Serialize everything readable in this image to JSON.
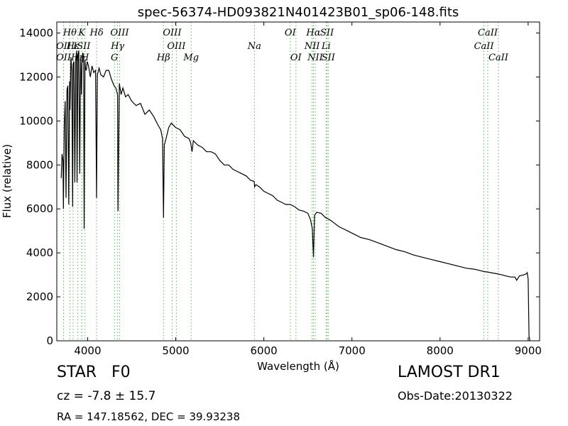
{
  "chart_data": {
    "type": "line",
    "title": "spec-56374-HD093821N401423B01_sp06-148.fits",
    "xlabel": "Wavelength (Å)",
    "ylabel": "Flux (relative)",
    "xlim": [
      3650,
      9130
    ],
    "ylim": [
      0,
      14500
    ],
    "xticks": [
      4000,
      5000,
      6000,
      7000,
      8000,
      9000
    ],
    "yticks": [
      0,
      2000,
      4000,
      6000,
      8000,
      10000,
      12000,
      14000
    ],
    "grid": false,
    "line_color": "#000000",
    "marker_color": "#55bb55",
    "series": [
      {
        "x": [
          3700,
          3710,
          3720,
          3725,
          3735,
          3745,
          3755,
          3765,
          3775,
          3785,
          3795,
          3800,
          3810,
          3820,
          3830,
          3835,
          3845,
          3855,
          3865,
          3875,
          3880,
          3890,
          3900,
          3910,
          3920,
          3930,
          3935,
          3945,
          3955,
          3960,
          3970,
          3975,
          3985,
          3995,
          4010,
          4030,
          4050,
          4070,
          4090,
          4101,
          4110,
          4130,
          4150,
          4180,
          4210,
          4240,
          4270,
          4300,
          4320,
          4340,
          4345,
          4360,
          4380,
          4400,
          4430,
          4460,
          4500,
          4550,
          4600,
          4650,
          4700,
          4750,
          4800,
          4830,
          4850,
          4861,
          4870,
          4890,
          4920,
          4950,
          5000,
          5050,
          5100,
          5150,
          5170,
          5185,
          5200,
          5250,
          5300,
          5350,
          5400,
          5450,
          5500,
          5550,
          5600,
          5650,
          5700,
          5750,
          5800,
          5850,
          5890,
          5895,
          5910,
          5950,
          6000,
          6050,
          6100,
          6150,
          6200,
          6250,
          6300,
          6350,
          6400,
          6450,
          6500,
          6530,
          6550,
          6563,
          6575,
          6600,
          6650,
          6700,
          6750,
          6800,
          6850,
          6900,
          6950,
          7000,
          7100,
          7200,
          7300,
          7400,
          7500,
          7600,
          7700,
          7800,
          7850,
          7900,
          8000,
          8100,
          8200,
          8300,
          8400,
          8450,
          8500,
          8550,
          8600,
          8650,
          8700,
          8750,
          8800,
          8850,
          8870,
          8900,
          8950,
          8980,
          8990,
          9000,
          9010,
          9020
        ],
        "y": [
          7400,
          8500,
          8200,
          6000,
          9800,
          10900,
          6500,
          11400,
          11600,
          6200,
          11800,
          10500,
          12900,
          12300,
          6100,
          12600,
          12700,
          7200,
          12800,
          13200,
          7200,
          13000,
          13200,
          7600,
          12900,
          11200,
          12600,
          13100,
          12700,
          5100,
          12800,
          12400,
          12300,
          12700,
          12500,
          12000,
          12500,
          12200,
          12300,
          6500,
          12100,
          12400,
          12100,
          12000,
          12300,
          12300,
          11900,
          11600,
          11500,
          11200,
          5900,
          11700,
          11200,
          11500,
          11100,
          11200,
          10900,
          10700,
          10800,
          10300,
          10500,
          10200,
          9800,
          9600,
          9200,
          5600,
          8900,
          9200,
          9700,
          9900,
          9700,
          9600,
          9300,
          9200,
          9000,
          8600,
          9100,
          8900,
          8800,
          8600,
          8600,
          8500,
          8200,
          8000,
          8000,
          7800,
          7700,
          7600,
          7500,
          7300,
          7250,
          7000,
          7100,
          7000,
          6800,
          6700,
          6600,
          6400,
          6300,
          6200,
          6200,
          6100,
          5950,
          5900,
          5800,
          5500,
          5100,
          3800,
          5700,
          5850,
          5800,
          5600,
          5500,
          5350,
          5200,
          5100,
          5000,
          4900,
          4700,
          4600,
          4450,
          4300,
          4150,
          4050,
          3900,
          3800,
          3750,
          3700,
          3600,
          3500,
          3400,
          3300,
          3250,
          3200,
          3150,
          3120,
          3080,
          3050,
          3000,
          2950,
          2900,
          2900,
          2750,
          2950,
          3000,
          3050,
          3100,
          2800,
          200,
          0
        ]
      }
    ],
    "line_markers": [
      {
        "label": "Hθ",
        "x": 3798,
        "row": 0
      },
      {
        "label": "K",
        "x": 3934,
        "row": 0
      },
      {
        "label": "Hδ",
        "x": 4102,
        "row": 0
      },
      {
        "label": "OIII",
        "x": 4363,
        "row": 0
      },
      {
        "label": "OIII",
        "x": 4959,
        "row": 0
      },
      {
        "label": "OI",
        "x": 6300,
        "row": 0
      },
      {
        "label": "Hα",
        "x": 6563,
        "row": 0
      },
      {
        "label": "SII",
        "x": 6717,
        "row": 0
      },
      {
        "label": "CaII",
        "x": 8542,
        "row": 0
      },
      {
        "label": "OII",
        "x": 3727,
        "row": 1
      },
      {
        "label": "Hε",
        "x": 3835,
        "row": 1
      },
      {
        "label": "ISII",
        "x": 3934,
        "row": 1
      },
      {
        "label": "Hγ",
        "x": 4340,
        "row": 1
      },
      {
        "label": "OIII",
        "x": 5007,
        "row": 1
      },
      {
        "label": "Na",
        "x": 5893,
        "row": 1
      },
      {
        "label": "NII",
        "x": 6548,
        "row": 1
      },
      {
        "label": "Li",
        "x": 6707,
        "row": 1
      },
      {
        "label": "CaII",
        "x": 8498,
        "row": 1
      },
      {
        "label": "OII",
        "x": 3727,
        "row": 2
      },
      {
        "label": "Hη",
        "x": 3889,
        "row": 2
      },
      {
        "label": "H",
        "x": 3970,
        "row": 2
      },
      {
        "label": "G",
        "x": 4304,
        "row": 2
      },
      {
        "label": "Hβ",
        "x": 4861,
        "row": 2
      },
      {
        "label": "Mg",
        "x": 5175,
        "row": 2
      },
      {
        "label": "OI",
        "x": 6364,
        "row": 2
      },
      {
        "label": "NII",
        "x": 6583,
        "row": 2
      },
      {
        "label": "SII",
        "x": 6731,
        "row": 2
      },
      {
        "label": "CaII",
        "x": 8662,
        "row": 2
      }
    ]
  },
  "info": {
    "object_class": "STAR",
    "subclass": "F0",
    "redshift": "cz = -7.8 ± 15.7",
    "coords": "RA = 147.18562, DEC = 39.93238",
    "survey": "LAMOST DR1",
    "obs_date": "Obs-Date:20130322"
  }
}
